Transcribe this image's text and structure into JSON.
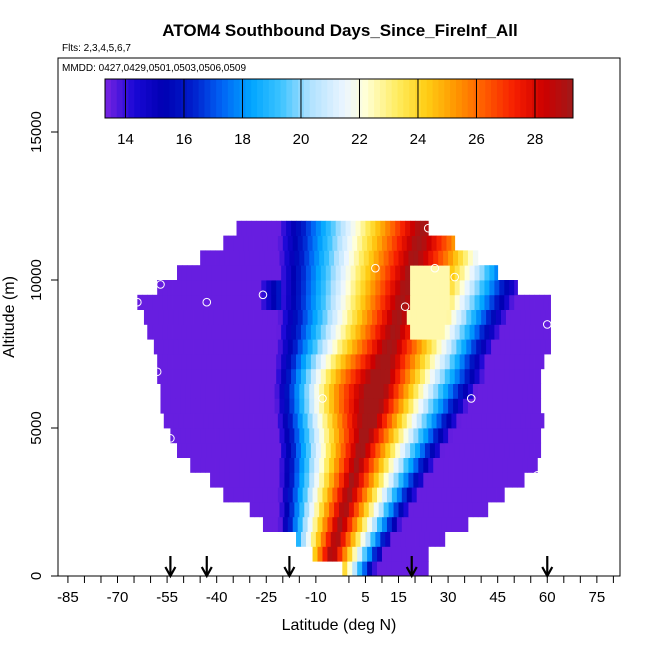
{
  "chart_data": {
    "type": "heatmap",
    "title": "ATOM4 Southbound Days_Since_FireInf_All",
    "flights_label": "Flts: 2,3,4,5,6,7",
    "dates_label": "MMDD: 0427,0429,0501,0503,0506,0509",
    "xlabel": "Latitude (deg N)",
    "ylabel": "Altitude (m)",
    "xlim": [
      -88,
      82
    ],
    "ylim": [
      0,
      17500
    ],
    "x_ticks": [
      -85,
      -70,
      -55,
      -40,
      -25,
      -10,
      5,
      15,
      30,
      45,
      60,
      75
    ],
    "x_minor_ticks": [
      -80,
      -75,
      -65,
      -60,
      -50,
      -45,
      -35,
      -30,
      -20,
      -15,
      0,
      10,
      20,
      25,
      35,
      40,
      50,
      55,
      65,
      70,
      80
    ],
    "y_ticks": [
      0,
      5000,
      10000,
      15000
    ],
    "colorbar": {
      "range": [
        13.3,
        29.3
      ],
      "ticks": [
        14,
        16,
        18,
        20,
        22,
        24,
        26,
        28
      ]
    },
    "arrow_latitudes": [
      -54,
      -43,
      -18,
      19,
      60
    ],
    "profile_points": [
      {
        "lat": -57,
        "alt": 9850
      },
      {
        "lat": -64,
        "alt": 9250
      },
      {
        "lat": -43,
        "alt": 9250
      },
      {
        "lat": -26,
        "alt": 9500
      },
      {
        "lat": -58,
        "alt": 6900
      },
      {
        "lat": -54,
        "alt": 4650
      },
      {
        "lat": -8,
        "alt": 6000
      },
      {
        "lat": 8,
        "alt": 10400
      },
      {
        "lat": 17,
        "alt": 9100
      },
      {
        "lat": 24,
        "alt": 11750
      },
      {
        "lat": 26,
        "alt": 10400
      },
      {
        "lat": 32,
        "alt": 10100
      },
      {
        "lat": 37,
        "alt": 6000
      },
      {
        "lat": 57,
        "alt": 3400
      },
      {
        "lat": 60,
        "alt": 8500
      }
    ]
  }
}
